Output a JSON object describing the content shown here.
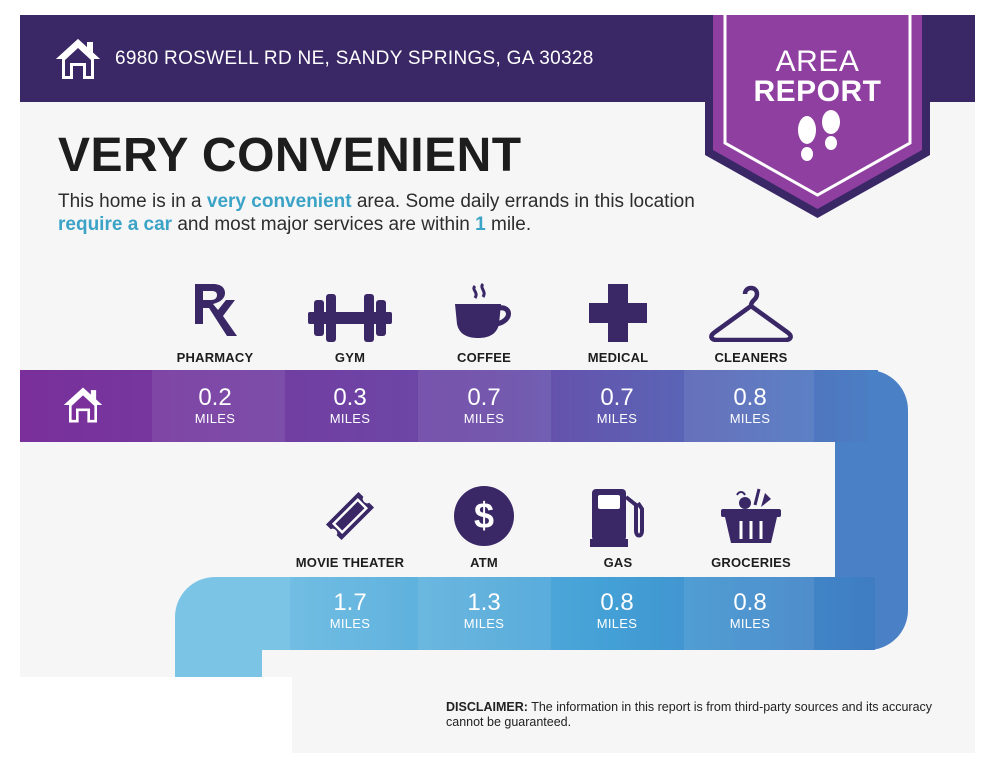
{
  "header": {
    "address": "6980 ROSWELL RD NE, SANDY SPRINGS, GA 30328"
  },
  "badge": {
    "line1": "AREA",
    "line2": "REPORT"
  },
  "headline": "VERY CONVENIENT",
  "summary": {
    "part1": "This home is in a ",
    "highlight1": "very convenient",
    "part2": " area. Some daily errands in this location ",
    "highlight2": "require a car",
    "part3": " and most major services are within ",
    "highlight3": "1",
    "part4": " mile."
  },
  "amenities_row1": [
    {
      "label": "PHARMACY",
      "icon": "rx-icon",
      "distance": "0.2",
      "unit": "MILES"
    },
    {
      "label": "GYM",
      "icon": "dumbbell-icon",
      "distance": "0.3",
      "unit": "MILES"
    },
    {
      "label": "COFFEE",
      "icon": "coffee-cup-icon",
      "distance": "0.7",
      "unit": "MILES"
    },
    {
      "label": "MEDICAL",
      "icon": "medical-cross-icon",
      "distance": "0.7",
      "unit": "MILES"
    },
    {
      "label": "CLEANERS",
      "icon": "hanger-icon",
      "distance": "0.8",
      "unit": "MILES"
    }
  ],
  "amenities_row2": [
    {
      "label": "MOVIE THEATER",
      "icon": "ticket-icon",
      "distance": "1.7",
      "unit": "MILES"
    },
    {
      "label": "ATM",
      "icon": "dollar-coin-icon",
      "distance": "1.3",
      "unit": "MILES"
    },
    {
      "label": "GAS",
      "icon": "gas-pump-icon",
      "distance": "0.8",
      "unit": "MILES"
    },
    {
      "label": "GROCERIES",
      "icon": "grocery-basket-icon",
      "distance": "0.8",
      "unit": "MILES"
    }
  ],
  "disclaimer": {
    "label": "DISCLAIMER:",
    "text": " The information in this report is from third-party sources and its accuracy cannot be guaranteed."
  },
  "colors": {
    "header": "#3a2766",
    "badge": "#8e3fa0",
    "accent_text": "#3aa3c6",
    "icon": "#3a2766"
  }
}
